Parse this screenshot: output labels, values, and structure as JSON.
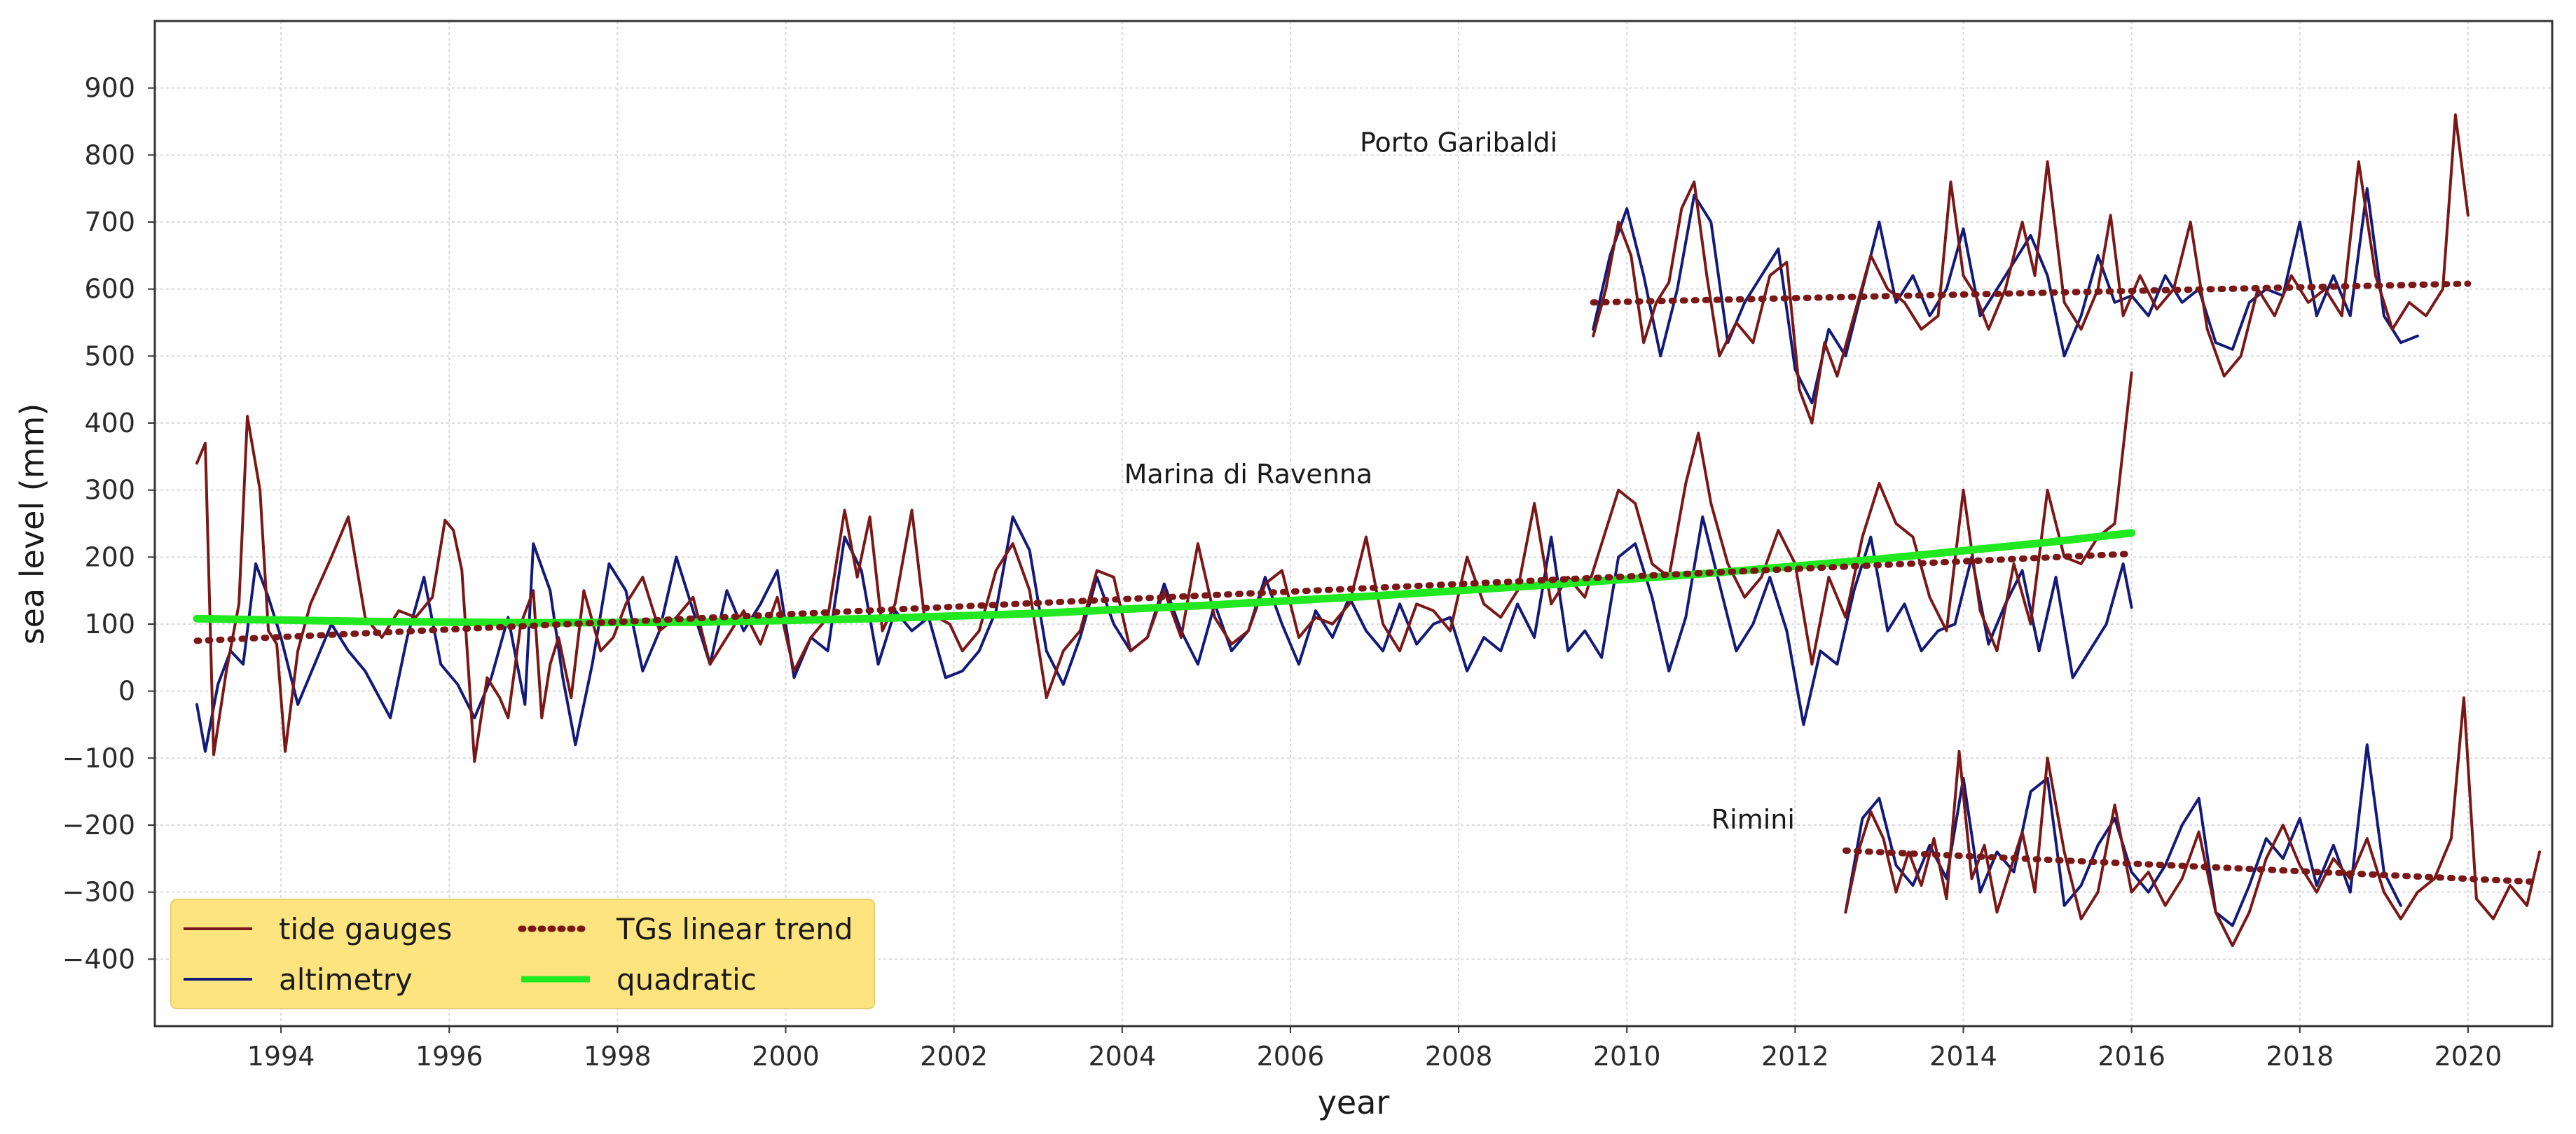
{
  "chart_data": {
    "type": "line",
    "title": "",
    "xlabel": "year",
    "ylabel": "sea level (mm)",
    "xlim": [
      1992.5,
      2021.0
    ],
    "ylim": [
      -500,
      1000
    ],
    "xticks": [
      1994,
      1996,
      1998,
      2000,
      2002,
      2004,
      2006,
      2008,
      2010,
      2012,
      2014,
      2016,
      2018,
      2020
    ],
    "yticks": [
      -400,
      -300,
      -200,
      -100,
      0,
      100,
      200,
      300,
      400,
      500,
      600,
      700,
      800,
      900
    ],
    "grid": true,
    "legend_position": "bottom-left",
    "colors": {
      "tide_gauges": "#7a1818",
      "altimetry": "#131a78",
      "trend": "#7a1818",
      "quadratic": "#22e822",
      "legend_bg": "#fde47f"
    },
    "legend": {
      "tide_gauges": "tide gauges",
      "altimetry": "altimetry",
      "trend": "TGs linear trend",
      "quadratic": "quadratic"
    },
    "annotations": [
      {
        "id": "porto",
        "text": "Porto Garibaldi",
        "x": 2008.0,
        "y": 805
      },
      {
        "id": "ravenna",
        "text": "Marina di Ravenna",
        "x": 2005.5,
        "y": 310
      },
      {
        "id": "rimini",
        "text": "Rimini",
        "x": 2011.5,
        "y": -205
      }
    ],
    "series": [
      {
        "name": "Marina di Ravenna tide gauges",
        "style": "tide_gauges",
        "x": [
          1993.0,
          1993.1,
          1993.2,
          1993.35,
          1993.5,
          1993.6,
          1993.75,
          1993.85,
          1993.95,
          1994.05,
          1994.2,
          1994.35,
          1994.6,
          1994.8,
          1995.0,
          1995.2,
          1995.4,
          1995.6,
          1995.8,
          1995.95,
          1996.05,
          1996.15,
          1996.3,
          1996.45,
          1996.6,
          1996.7,
          1996.85,
          1997.0,
          1997.1,
          1997.2,
          1997.3,
          1997.45,
          1997.6,
          1997.8,
          1997.95,
          1998.1,
          1998.3,
          1998.5,
          1998.7,
          1998.9,
          1999.1,
          1999.3,
          1999.5,
          1999.7,
          1999.9,
          2000.1,
          2000.3,
          2000.5,
          2000.7,
          2000.85,
          2001.0,
          2001.15,
          2001.3,
          2001.5,
          2001.65,
          2001.8,
          2001.95,
          2002.1,
          2002.3,
          2002.5,
          2002.7,
          2002.9,
          2003.1,
          2003.3,
          2003.5,
          2003.7,
          2003.9,
          2004.1,
          2004.3,
          2004.5,
          2004.7,
          2004.9,
          2005.1,
          2005.3,
          2005.5,
          2005.7,
          2005.9,
          2006.1,
          2006.3,
          2006.5,
          2006.7,
          2006.9,
          2007.1,
          2007.3,
          2007.5,
          2007.7,
          2007.9,
          2008.1,
          2008.3,
          2008.5,
          2008.7,
          2008.9,
          2009.1,
          2009.3,
          2009.5,
          2009.7,
          2009.9,
          2010.1,
          2010.3,
          2010.5,
          2010.7,
          2010.85,
          2011.0,
          2011.2,
          2011.4,
          2011.6,
          2011.8,
          2012.0,
          2012.2,
          2012.4,
          2012.6,
          2012.8,
          2013.0,
          2013.2,
          2013.4,
          2013.6,
          2013.8,
          2014.0,
          2014.2,
          2014.4,
          2014.6,
          2014.8,
          2015.0,
          2015.2,
          2015.4,
          2015.6,
          2015.8,
          2016.0
        ],
        "y": [
          340,
          370,
          -95,
          30,
          130,
          410,
          300,
          90,
          70,
          -90,
          60,
          130,
          200,
          260,
          110,
          80,
          120,
          110,
          140,
          255,
          240,
          180,
          -105,
          20,
          -10,
          -40,
          100,
          150,
          -40,
          40,
          80,
          -10,
          150,
          60,
          80,
          130,
          170,
          90,
          110,
          140,
          40,
          80,
          120,
          70,
          140,
          30,
          80,
          110,
          270,
          170,
          260,
          90,
          130,
          270,
          110,
          110,
          100,
          60,
          90,
          180,
          220,
          150,
          -10,
          60,
          90,
          180,
          170,
          60,
          80,
          150,
          80,
          220,
          110,
          70,
          90,
          160,
          180,
          80,
          110,
          100,
          130,
          230,
          100,
          60,
          130,
          120,
          90,
          200,
          130,
          110,
          150,
          280,
          130,
          170,
          140,
          220,
          300,
          280,
          190,
          170,
          310,
          385,
          280,
          190,
          140,
          170,
          240,
          190,
          40,
          170,
          110,
          230,
          310,
          250,
          230,
          140,
          90,
          300,
          120,
          60,
          190,
          100,
          300,
          200,
          190,
          230,
          250,
          475
        ]
      },
      {
        "name": "Marina di Ravenna altimetry",
        "style": "altimetry",
        "x": [
          1993.0,
          1993.1,
          1993.25,
          1993.4,
          1993.55,
          1993.7,
          1993.85,
          1994.0,
          1994.2,
          1994.4,
          1994.6,
          1994.8,
          1995.0,
          1995.3,
          1995.5,
          1995.7,
          1995.9,
          1996.1,
          1996.3,
          1996.5,
          1996.7,
          1996.9,
          1997.0,
          1997.2,
          1997.35,
          1997.5,
          1997.7,
          1997.9,
          1998.1,
          1998.3,
          1998.5,
          1998.7,
          1998.9,
          1999.1,
          1999.3,
          1999.5,
          1999.7,
          1999.9,
          2000.1,
          2000.3,
          2000.5,
          2000.7,
          2000.9,
          2001.1,
          2001.3,
          2001.5,
          2001.7,
          2001.9,
          2002.1,
          2002.3,
          2002.5,
          2002.7,
          2002.9,
          2003.1,
          2003.3,
          2003.5,
          2003.7,
          2003.9,
          2004.1,
          2004.3,
          2004.5,
          2004.7,
          2004.9,
          2005.1,
          2005.3,
          2005.5,
          2005.7,
          2005.9,
          2006.1,
          2006.3,
          2006.5,
          2006.7,
          2006.9,
          2007.1,
          2007.3,
          2007.5,
          2007.7,
          2007.9,
          2008.1,
          2008.3,
          2008.5,
          2008.7,
          2008.9,
          2009.1,
          2009.3,
          2009.5,
          2009.7,
          2009.9,
          2010.1,
          2010.3,
          2010.5,
          2010.7,
          2010.9,
          2011.1,
          2011.3,
          2011.5,
          2011.7,
          2011.9,
          2012.1,
          2012.3,
          2012.5,
          2012.7,
          2012.9,
          2013.1,
          2013.3,
          2013.5,
          2013.7,
          2013.9,
          2014.1,
          2014.3,
          2014.5,
          2014.7,
          2014.9,
          2015.1,
          2015.3,
          2015.5,
          2015.7,
          2015.9,
          2016.0
        ],
        "y": [
          -20,
          -90,
          10,
          60,
          40,
          190,
          140,
          80,
          -20,
          40,
          100,
          60,
          30,
          -40,
          80,
          170,
          40,
          10,
          -40,
          20,
          110,
          -20,
          220,
          150,
          20,
          -80,
          40,
          190,
          150,
          30,
          90,
          200,
          120,
          40,
          150,
          90,
          130,
          180,
          20,
          80,
          60,
          230,
          180,
          40,
          120,
          90,
          110,
          20,
          30,
          60,
          120,
          260,
          210,
          60,
          10,
          80,
          170,
          100,
          60,
          80,
          160,
          90,
          40,
          130,
          60,
          90,
          170,
          100,
          40,
          120,
          80,
          140,
          90,
          60,
          130,
          70,
          100,
          110,
          30,
          80,
          60,
          130,
          80,
          230,
          60,
          90,
          50,
          200,
          220,
          140,
          30,
          110,
          260,
          160,
          60,
          100,
          170,
          90,
          -50,
          60,
          40,
          150,
          230,
          90,
          130,
          60,
          90,
          100,
          200,
          70,
          130,
          180,
          60,
          170,
          20,
          60,
          100,
          190,
          125
        ]
      },
      {
        "name": "Porto Garibaldi tide gauges",
        "style": "tide_gauges",
        "x": [
          2009.6,
          2009.75,
          2009.9,
          2010.05,
          2010.2,
          2010.35,
          2010.5,
          2010.65,
          2010.8,
          2010.95,
          2011.1,
          2011.3,
          2011.5,
          2011.7,
          2011.9,
          2012.05,
          2012.2,
          2012.35,
          2012.5,
          2012.7,
          2012.9,
          2013.1,
          2013.3,
          2013.5,
          2013.7,
          2013.85,
          2014.0,
          2014.15,
          2014.3,
          2014.5,
          2014.7,
          2014.85,
          2015.0,
          2015.2,
          2015.4,
          2015.6,
          2015.75,
          2015.9,
          2016.1,
          2016.3,
          2016.5,
          2016.7,
          2016.9,
          2017.1,
          2017.3,
          2017.5,
          2017.7,
          2017.9,
          2018.1,
          2018.3,
          2018.5,
          2018.7,
          2018.9,
          2019.1,
          2019.3,
          2019.5,
          2019.7,
          2019.85,
          2020.0
        ],
        "y": [
          530,
          600,
          700,
          650,
          520,
          580,
          610,
          720,
          760,
          620,
          500,
          550,
          520,
          620,
          640,
          450,
          400,
          520,
          470,
          560,
          650,
          600,
          580,
          540,
          560,
          760,
          620,
          590,
          540,
          600,
          700,
          620,
          790,
          580,
          540,
          600,
          710,
          560,
          620,
          570,
          600,
          700,
          540,
          470,
          500,
          600,
          560,
          620,
          580,
          600,
          560,
          790,
          620,
          540,
          580,
          560,
          600,
          860,
          710
        ]
      },
      {
        "name": "Porto Garibaldi altimetry",
        "style": "altimetry",
        "x": [
          2009.6,
          2009.8,
          2010.0,
          2010.2,
          2010.4,
          2010.6,
          2010.8,
          2011.0,
          2011.2,
          2011.4,
          2011.6,
          2011.8,
          2012.0,
          2012.2,
          2012.4,
          2012.6,
          2012.8,
          2013.0,
          2013.2,
          2013.4,
          2013.6,
          2013.8,
          2014.0,
          2014.2,
          2014.4,
          2014.6,
          2014.8,
          2015.0,
          2015.2,
          2015.4,
          2015.6,
          2015.8,
          2016.0,
          2016.2,
          2016.4,
          2016.6,
          2016.8,
          2017.0,
          2017.2,
          2017.4,
          2017.6,
          2017.8,
          2018.0,
          2018.2,
          2018.4,
          2018.6,
          2018.8,
          2019.0,
          2019.2,
          2019.4
        ],
        "y": [
          540,
          650,
          720,
          620,
          500,
          600,
          740,
          700,
          520,
          580,
          620,
          660,
          480,
          430,
          540,
          500,
          600,
          700,
          580,
          620,
          560,
          600,
          690,
          560,
          600,
          640,
          680,
          620,
          500,
          560,
          650,
          580,
          590,
          560,
          620,
          580,
          600,
          520,
          510,
          580,
          600,
          590,
          700,
          560,
          620,
          560,
          750,
          560,
          520,
          530
        ]
      },
      {
        "name": "Rimini tide gauges",
        "style": "tide_gauges",
        "x": [
          2012.6,
          2012.75,
          2012.9,
          2013.05,
          2013.2,
          2013.35,
          2013.5,
          2013.65,
          2013.8,
          2013.95,
          2014.1,
          2014.25,
          2014.4,
          2014.55,
          2014.7,
          2014.85,
          2015.0,
          2015.2,
          2015.4,
          2015.6,
          2015.8,
          2016.0,
          2016.2,
          2016.4,
          2016.6,
          2016.8,
          2017.0,
          2017.2,
          2017.4,
          2017.6,
          2017.8,
          2018.0,
          2018.2,
          2018.4,
          2018.6,
          2018.8,
          2019.0,
          2019.2,
          2019.4,
          2019.6,
          2019.8,
          2019.95,
          2020.1,
          2020.3,
          2020.5,
          2020.7,
          2020.85
        ],
        "y": [
          -330,
          -240,
          -180,
          -220,
          -300,
          -240,
          -290,
          -220,
          -310,
          -90,
          -280,
          -230,
          -330,
          -270,
          -210,
          -300,
          -100,
          -240,
          -340,
          -300,
          -170,
          -300,
          -270,
          -320,
          -280,
          -210,
          -330,
          -380,
          -330,
          -250,
          -200,
          -260,
          -300,
          -250,
          -280,
          -220,
          -300,
          -340,
          -300,
          -280,
          -220,
          -10,
          -310,
          -340,
          -290,
          -320,
          -240
        ]
      },
      {
        "name": "Rimini altimetry",
        "style": "altimetry",
        "x": [
          2012.6,
          2012.8,
          2013.0,
          2013.2,
          2013.4,
          2013.6,
          2013.8,
          2014.0,
          2014.2,
          2014.4,
          2014.6,
          2014.8,
          2015.0,
          2015.2,
          2015.4,
          2015.6,
          2015.8,
          2016.0,
          2016.2,
          2016.4,
          2016.6,
          2016.8,
          2017.0,
          2017.2,
          2017.4,
          2017.6,
          2017.8,
          2018.0,
          2018.2,
          2018.4,
          2018.6,
          2018.8,
          2019.0,
          2019.2
        ],
        "y": [
          -330,
          -190,
          -160,
          -260,
          -290,
          -230,
          -280,
          -130,
          -300,
          -240,
          -270,
          -150,
          -130,
          -320,
          -290,
          -230,
          -190,
          -270,
          -300,
          -260,
          -200,
          -160,
          -330,
          -350,
          -290,
          -220,
          -250,
          -190,
          -290,
          -230,
          -300,
          -80,
          -270,
          -320
        ]
      },
      {
        "name": "Marina di Ravenna linear trend",
        "style": "trend",
        "x": [
          1993.0,
          2016.0
        ],
        "y": [
          75,
          205
        ]
      },
      {
        "name": "Porto Garibaldi linear trend",
        "style": "trend",
        "x": [
          2009.6,
          2020.0
        ],
        "y": [
          580,
          608
        ]
      },
      {
        "name": "Rimini linear trend",
        "style": "trend",
        "x": [
          2012.6,
          2020.85
        ],
        "y": [
          -238,
          -285
        ]
      },
      {
        "name": "Marina di Ravenna quadratic",
        "style": "quadratic",
        "x": [
          1993,
          1995,
          1997,
          1999,
          2001,
          2003,
          2005,
          2007,
          2009,
          2011,
          2013,
          2015,
          2016
        ],
        "y": [
          108,
          104,
          102,
          103,
          108,
          116,
          128,
          142,
          158,
          176,
          197,
          222,
          236
        ]
      }
    ]
  }
}
